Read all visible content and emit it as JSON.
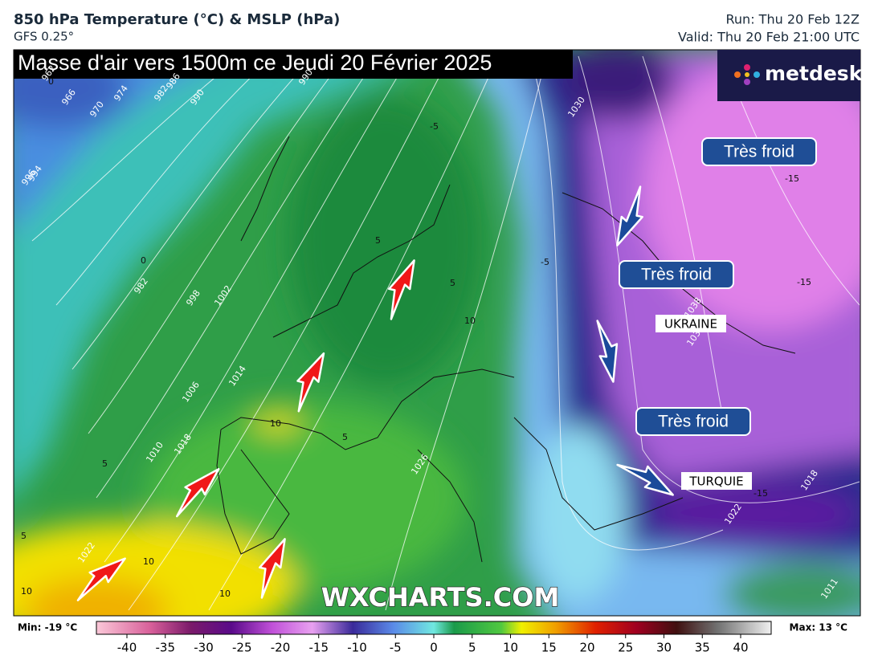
{
  "header": {
    "title": "850 hPa Temperature (°C) & MSLP (hPa)",
    "subtitle": "GFS 0.25°",
    "run": "Run: Thu 20 Feb 12Z",
    "valid": "Valid: Thu 20 Feb 21:00 UTC"
  },
  "banner": "Masse d'air vers 1500m ce Jeudi 20 Février 2025",
  "logo": "metdesk",
  "watermark": "WXCHARTS.COM",
  "callouts": [
    "Très froid",
    "Très froid",
    "Très froid"
  ],
  "places": [
    "UKRAINE",
    "TURQUIE"
  ],
  "isobar_labels": [
    "962",
    "966",
    "970",
    "974",
    "982",
    "986",
    "990",
    "994",
    "998",
    "1002",
    "1006",
    "1010",
    "1014",
    "1018",
    "1022",
    "1026",
    "1030",
    "1034",
    "1038",
    "1018",
    "1022",
    "1011",
    "996",
    "982",
    "990"
  ],
  "temperature_labels": [
    "-5",
    "-5",
    "-15",
    "-15",
    "-15",
    "0",
    "0",
    "5",
    "5",
    "5",
    "5",
    "5",
    "10",
    "10",
    "10",
    "10",
    "10"
  ],
  "legend": {
    "min": "Min: -19 °C",
    "max": "Max: 13 °C",
    "ticks": [
      -40,
      -35,
      -30,
      -25,
      -20,
      -15,
      -10,
      -5,
      0,
      5,
      10,
      15,
      20,
      25,
      30,
      35,
      40
    ]
  }
}
